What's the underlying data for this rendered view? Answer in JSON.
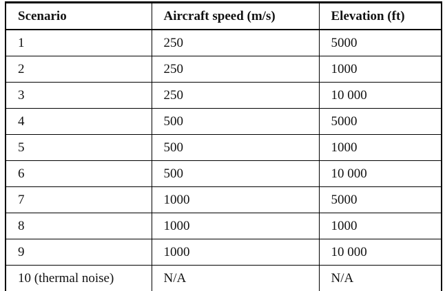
{
  "table": {
    "columns": [
      "Scenario",
      "Aircraft speed (m/s)",
      "Elevation (ft)"
    ],
    "rows": [
      [
        "1",
        "250",
        "5000"
      ],
      [
        "2",
        "250",
        "1000"
      ],
      [
        "3",
        "250",
        "10 000"
      ],
      [
        "4",
        "500",
        "5000"
      ],
      [
        "5",
        "500",
        "1000"
      ],
      [
        "6",
        "500",
        "10 000"
      ],
      [
        "7",
        "1000",
        "5000"
      ],
      [
        "8",
        "1000",
        "1000"
      ],
      [
        "9",
        "1000",
        "10 000"
      ],
      [
        "10 (thermal noise)",
        "N/A",
        "N/A"
      ]
    ]
  },
  "colors": {
    "border": "#000000",
    "text": "#111111",
    "background": "#ffffff"
  }
}
